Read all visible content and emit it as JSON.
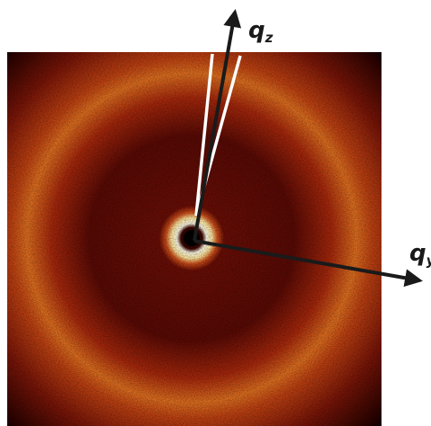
{
  "axes": [
    {
      "symbol": "q",
      "subscript": "z"
    },
    {
      "symbol": "q",
      "subscript": "y"
    }
  ]
}
